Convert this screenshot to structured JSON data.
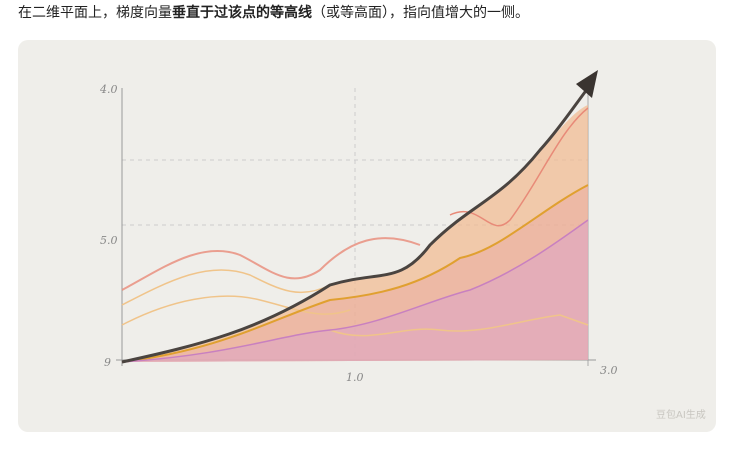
{
  "paragraph": {
    "before": "在二维平面上，梯度向量",
    "bold": "垂直于过该点的等高线",
    "after": "（或等高面），指向值增大的一侧。"
  },
  "figure": {
    "axis_labels": [
      "4.0",
      "5.0",
      "9",
      "1.0",
      "3.0"
    ],
    "watermark": "豆包AI生成"
  }
}
